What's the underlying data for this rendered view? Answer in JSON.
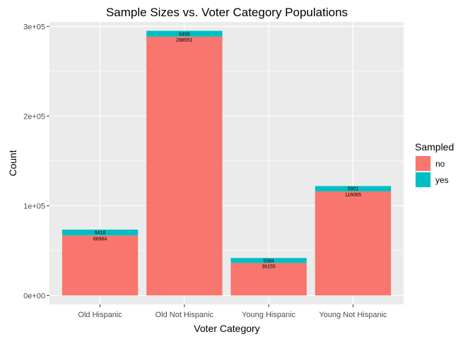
{
  "chart_data": {
    "type": "bar",
    "stacked": true,
    "title": "Sample Sizes vs. Voter Category Populations",
    "xlabel": "Voter Category",
    "ylabel": "Count",
    "ylim": [
      -10000,
      300000
    ],
    "yticks": [
      0,
      100000,
      200000,
      300000
    ],
    "ytick_labels": [
      "0e+00",
      "1e+05",
      "2e+05",
      "3e+05"
    ],
    "categories": [
      "Old Hispanic",
      "Old Not Hispanic",
      "Young Hispanic",
      "Young Not Hispanic"
    ],
    "series": [
      {
        "name": "no",
        "color": "#F8766D",
        "values": [
          66964,
          288551,
          36155,
          116065
        ]
      },
      {
        "name": "yes",
        "color": "#00BFC4",
        "values": [
          6416,
          6499,
          5584,
          5901
        ]
      }
    ],
    "data_labels": {
      "no": [
        "66964",
        "288551",
        "36155",
        "116065"
      ],
      "yes": [
        "6416",
        "6499",
        "5584",
        "5901"
      ]
    },
    "legend": {
      "title": "Sampled",
      "position": "right"
    },
    "grid": true,
    "panel_background": "#EBEBEB",
    "gridline_color": "#FFFFFF"
  }
}
